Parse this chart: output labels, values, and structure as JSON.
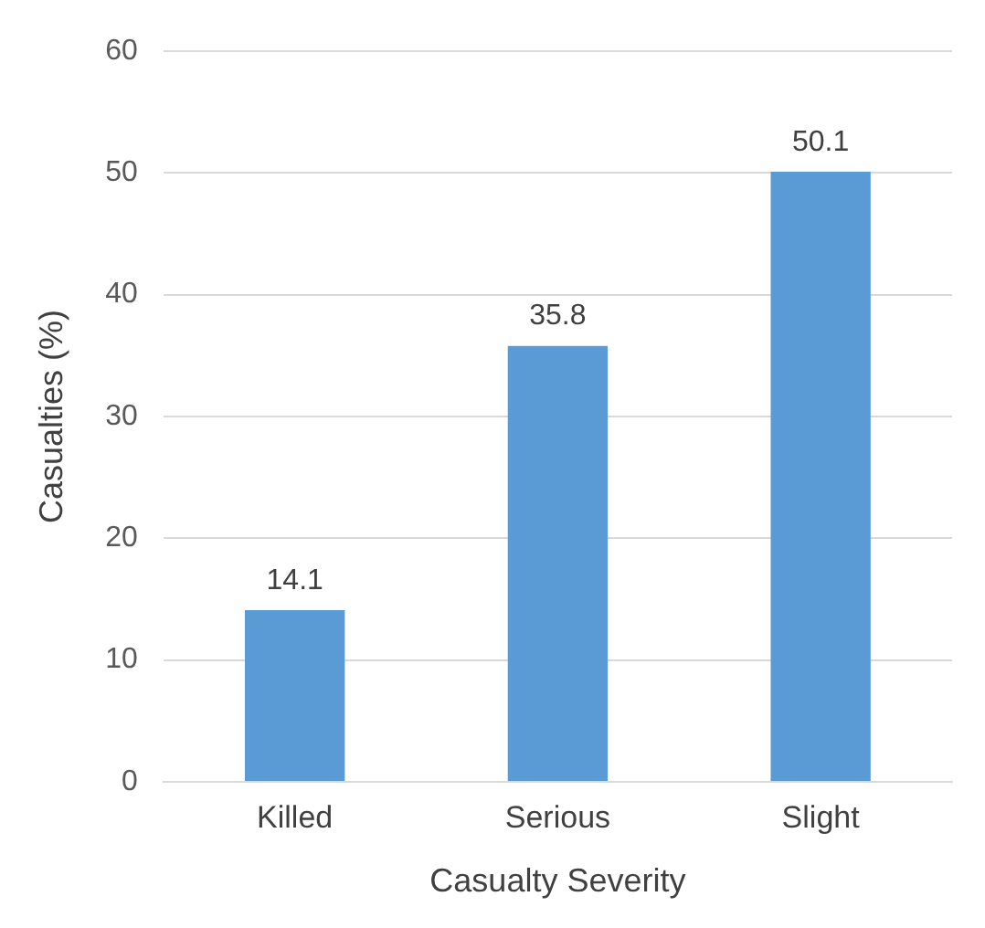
{
  "chart_data": {
    "type": "bar",
    "xlabel": "Casualty Severity",
    "ylabel": "Casualties (%)",
    "categories": [
      "Killed",
      "Serious",
      "Slight"
    ],
    "values": [
      14.1,
      35.8,
      50.1
    ],
    "color": "#5b9bd5",
    "ylim": [
      0,
      60
    ],
    "yticks": [
      0,
      10,
      20,
      30,
      40,
      50,
      60
    ],
    "grid": "y",
    "data_labels": true,
    "legend": false
  }
}
